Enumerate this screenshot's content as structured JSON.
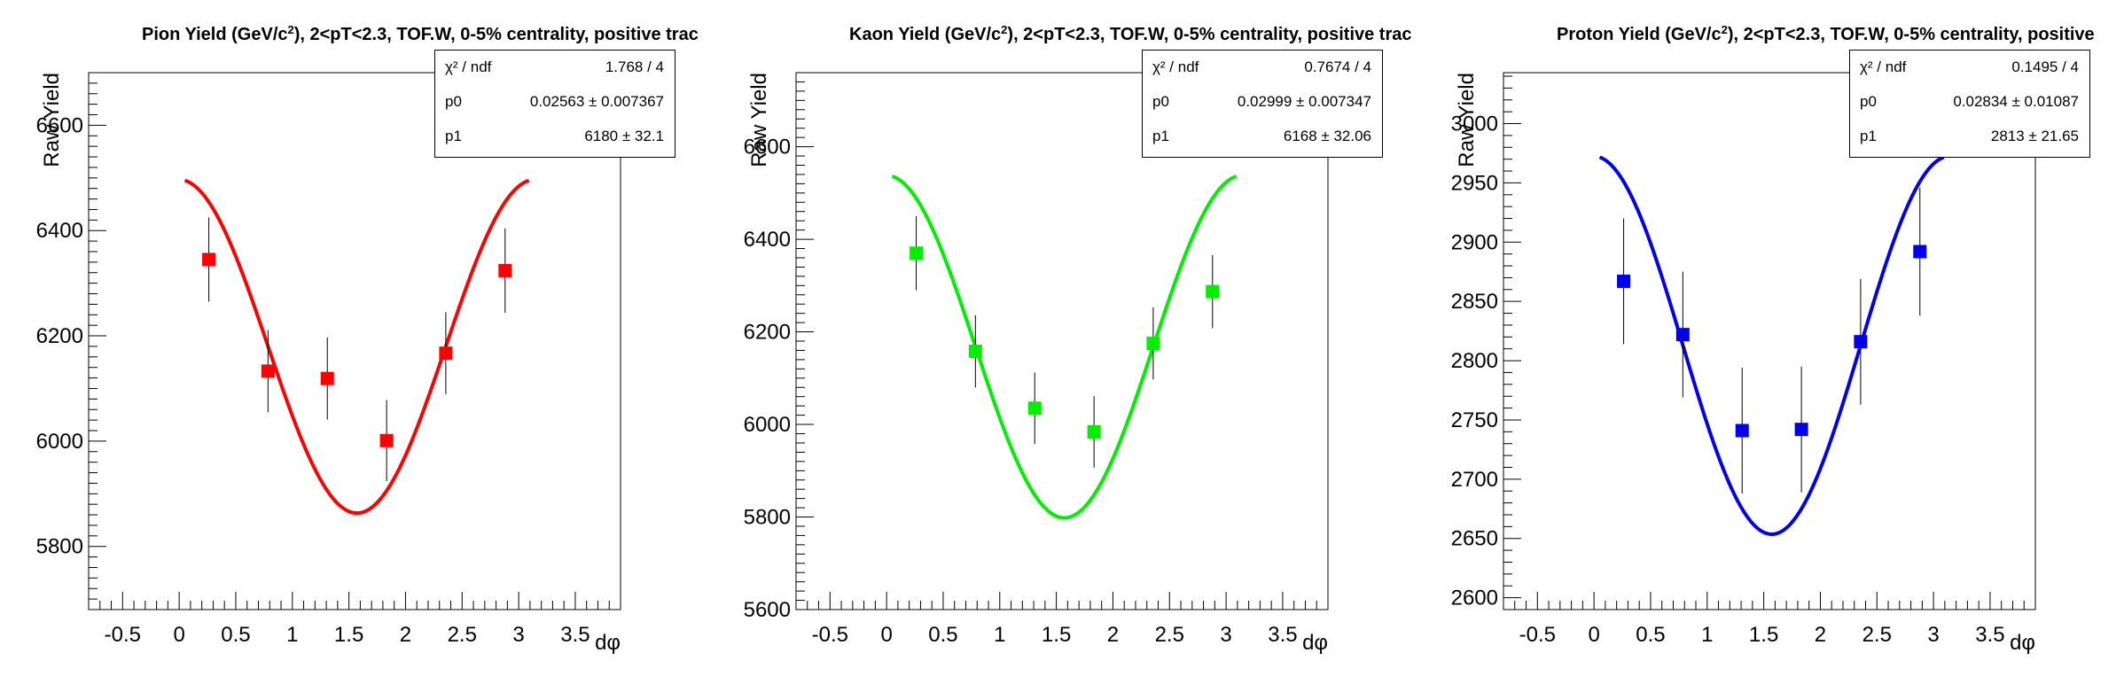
{
  "panels": [
    {
      "title_pre": "Pion Yield (GeV/c",
      "title_sup": "2",
      "title_post": "), 2<pT<2.3, TOF.W, 0-5% centrality, positive trac",
      "stats": [
        {
          "key": "χ² / ndf",
          "value": "1.768 / 4"
        },
        {
          "key": "p0",
          "value": "0.02563 ± 0.007367"
        },
        {
          "key": "p1",
          "value": "6180 ±  32.1"
        }
      ]
    },
    {
      "title_pre": "Kaon Yield (GeV/c",
      "title_sup": "2",
      "title_post": "), 2<pT<2.3, TOF.W, 0-5% centrality, positive trac",
      "stats": [
        {
          "key": "χ² / ndf",
          "value": "0.7674 / 4"
        },
        {
          "key": "p0",
          "value": "0.02999 ± 0.007347"
        },
        {
          "key": "p1",
          "value": "6168 ± 32.06"
        }
      ]
    },
    {
      "title_pre": "Proton Yield (GeV/c",
      "title_sup": "2",
      "title_post": "), 2<pT<2.3, TOF.W, 0-5% centrality, positive",
      "stats": [
        {
          "key": "χ² / ndf",
          "value": "0.1495 / 4"
        },
        {
          "key": "p0",
          "value": "0.02834 ± 0.01087"
        },
        {
          "key": "p1",
          "value": "2813 ± 21.65"
        }
      ]
    }
  ],
  "chart_data": [
    {
      "type": "scatter",
      "xlabel": "dφ",
      "ylabel": "Raw Yield",
      "xlim": [
        -0.8,
        3.9
      ],
      "ylim": [
        5680,
        6700
      ],
      "x_ticks": [
        -0.5,
        0,
        0.5,
        1,
        1.5,
        2,
        2.5,
        3,
        3.5
      ],
      "x_tick_labels": [
        "-0.5",
        "0",
        "0.5",
        "1",
        "1.5",
        "2",
        "2.5",
        "3",
        "3.5"
      ],
      "y_ticks": [
        5800,
        6000,
        6200,
        6400,
        6600
      ],
      "y_tick_labels": [
        "5800",
        "6000",
        "6200",
        "6400",
        "6600"
      ],
      "y_minor_step": 20,
      "color": "#ff0000",
      "points": [
        {
          "x": 0.262,
          "y": 6345,
          "err": 80
        },
        {
          "x": 0.785,
          "y": 6133,
          "err": 78
        },
        {
          "x": 1.309,
          "y": 6119,
          "err": 78
        },
        {
          "x": 1.833,
          "y": 6001,
          "err": 77
        },
        {
          "x": 2.356,
          "y": 6167,
          "err": 78
        },
        {
          "x": 2.88,
          "y": 6324,
          "err": 80
        }
      ],
      "fit": {
        "p0": 0.02563,
        "p1": 6180,
        "xrange": [
          0.05,
          3.09
        ]
      }
    },
    {
      "type": "scatter",
      "xlabel": "dφ",
      "ylabel": "Raw Yield",
      "xlim": [
        -0.8,
        3.9
      ],
      "ylim": [
        5600,
        6760
      ],
      "x_ticks": [
        -0.5,
        0,
        0.5,
        1,
        1.5,
        2,
        2.5,
        3,
        3.5
      ],
      "x_tick_labels": [
        "-0.5",
        "0",
        "0.5",
        "1",
        "1.5",
        "2",
        "2.5",
        "3",
        "3.5"
      ],
      "y_ticks": [
        5600,
        5800,
        6000,
        6200,
        6400,
        6600
      ],
      "y_tick_labels": [
        "5600",
        "5800",
        "6000",
        "6200",
        "6400",
        "6600"
      ],
      "y_minor_step": 20,
      "color": "#00ee00",
      "points": [
        {
          "x": 0.262,
          "y": 6370,
          "err": 80
        },
        {
          "x": 0.785,
          "y": 6158,
          "err": 78
        },
        {
          "x": 1.309,
          "y": 6035,
          "err": 77
        },
        {
          "x": 1.833,
          "y": 5984,
          "err": 77
        },
        {
          "x": 2.356,
          "y": 6175,
          "err": 78
        },
        {
          "x": 2.88,
          "y": 6287,
          "err": 79
        }
      ],
      "fit": {
        "p0": 0.02999,
        "p1": 6168,
        "xrange": [
          0.05,
          3.09
        ]
      }
    },
    {
      "type": "scatter",
      "xlabel": "dφ",
      "ylabel": "Raw Yield",
      "xlim": [
        -0.8,
        3.9
      ],
      "ylim": [
        2590,
        3043
      ],
      "x_ticks": [
        -0.5,
        0,
        0.5,
        1,
        1.5,
        2,
        2.5,
        3,
        3.5
      ],
      "x_tick_labels": [
        "-0.5",
        "0",
        "0.5",
        "1",
        "1.5",
        "2",
        "2.5",
        "3",
        "3.5"
      ],
      "y_ticks": [
        2600,
        2650,
        2700,
        2750,
        2800,
        2850,
        2900,
        2950,
        3000
      ],
      "y_tick_labels": [
        "2600",
        "2650",
        "2700",
        "2750",
        "2800",
        "2850",
        "2900",
        "2950",
        "3000"
      ],
      "y_minor_step": 10,
      "color": "#0000ee",
      "points": [
        {
          "x": 0.262,
          "y": 2867,
          "err": 53
        },
        {
          "x": 0.785,
          "y": 2822,
          "err": 53
        },
        {
          "x": 1.309,
          "y": 2741,
          "err": 53
        },
        {
          "x": 1.833,
          "y": 2742,
          "err": 53
        },
        {
          "x": 2.356,
          "y": 2816,
          "err": 53
        },
        {
          "x": 2.88,
          "y": 2892,
          "err": 54
        }
      ],
      "fit": {
        "p0": 0.02834,
        "p1": 2813,
        "xrange": [
          0.05,
          3.09
        ]
      }
    }
  ]
}
